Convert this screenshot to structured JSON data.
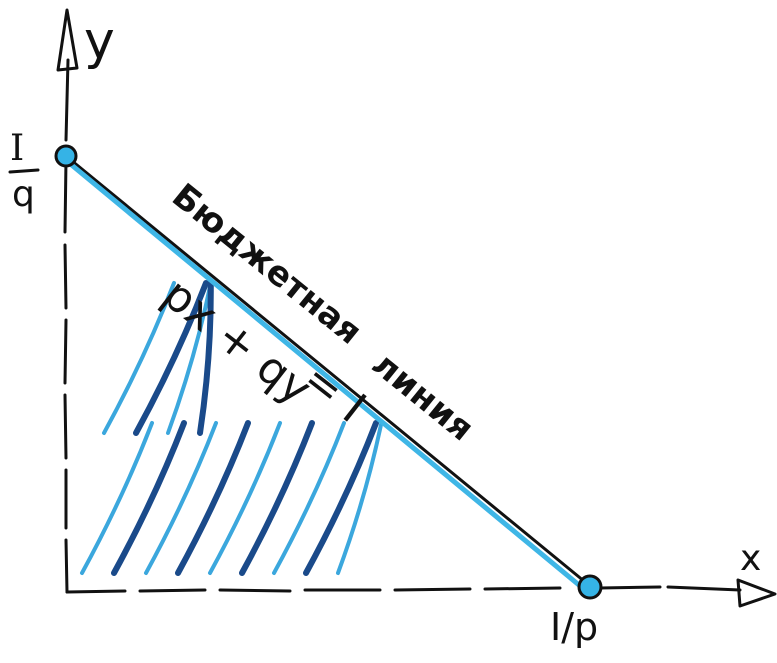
{
  "axes": {
    "y_label": "y",
    "x_label": "x"
  },
  "intercepts": {
    "y_intercept_numerator": "I",
    "y_intercept_denominator": "q",
    "x_intercept_label": "I/p"
  },
  "budget_line": {
    "name_word1": "Бюджетная",
    "name_word2": "линия",
    "equation_part1": "px + qy",
    "equation_part2": "= I"
  },
  "colors": {
    "ink": "#111111",
    "line_light_blue": "#3fb6e6",
    "hatch_dark_blue": "#1a4a8a",
    "hatch_light_blue": "#3ba7dd",
    "point_fill": "#35b3e6"
  }
}
